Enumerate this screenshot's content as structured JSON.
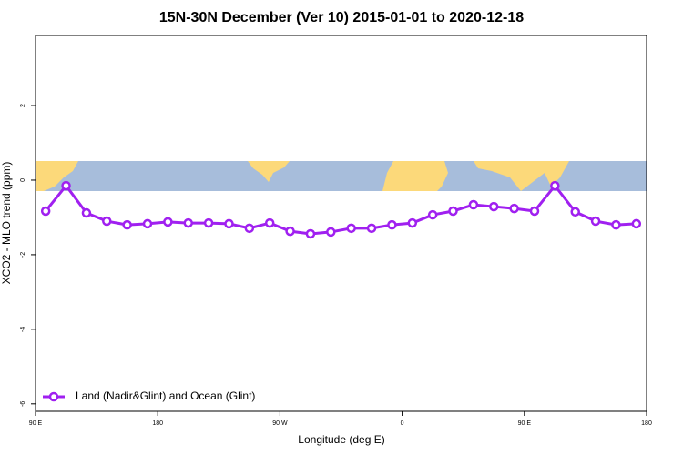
{
  "chart_data": {
    "type": "line",
    "title": "15N-30N December (Ver 10)   2015-01-01 to 2020-12-18",
    "x_label": "Longitude (deg E)",
    "y_label": "XCO2 - MLO trend (ppm)",
    "xlim": [
      90,
      540
    ],
    "ylim": [
      -6.2,
      3.88
    ],
    "xticks": [
      {
        "value": 90,
        "label": "90 E"
      },
      180,
      {
        "value": 270,
        "label": "90 W"
      },
      {
        "value": 360,
        "label": "0"
      },
      {
        "value": 450,
        "label": "90 E"
      },
      {
        "value": 540,
        "label": "180"
      }
    ],
    "yticks": [
      2,
      0,
      -2,
      -4,
      -6
    ],
    "legend": "bottom-left",
    "x": [
      97.5,
      112.5,
      127.5,
      142.5,
      157.5,
      172.5,
      187.5,
      202.5,
      217.5,
      232.5,
      247.5,
      262.5,
      277.5,
      292.5,
      307.5,
      322.5,
      337.5,
      352.5,
      367.5,
      382.5,
      397.5,
      412.5,
      427.5,
      442.5,
      457.5,
      472.5,
      487.5,
      502.5,
      517.5,
      532.5
    ],
    "series": [
      {
        "name": "Land (Nadir&Glint) and Ocean (Glint)",
        "color": "#a020f0",
        "values": [
          -0.83,
          -0.15,
          -0.88,
          -1.1,
          -1.2,
          -1.17,
          -1.12,
          -1.15,
          -1.15,
          -1.17,
          -1.29,
          -1.15,
          -1.37,
          -1.44,
          -1.39,
          -1.29,
          -1.29,
          -1.2,
          -1.15,
          -0.93,
          -0.83,
          -0.66,
          -0.71,
          -0.76,
          -0.83,
          -0.15,
          -0.85,
          -1.1,
          -1.2,
          -1.17
        ]
      }
    ]
  }
}
